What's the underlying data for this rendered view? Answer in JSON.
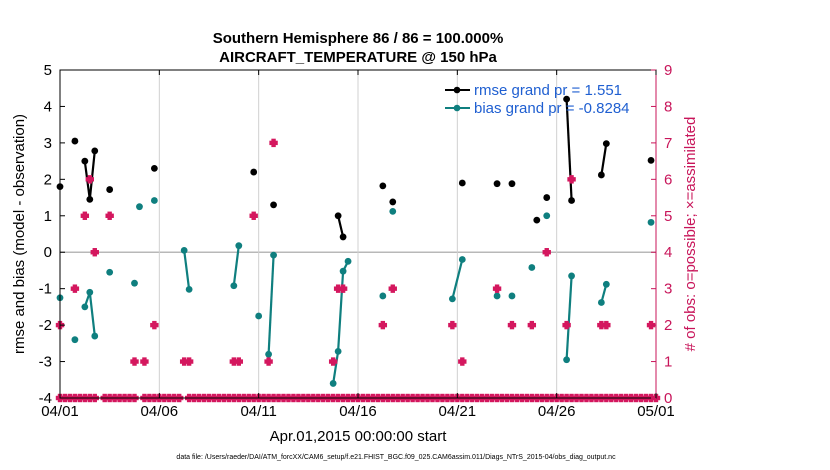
{
  "chart_data": {
    "type": "line",
    "title": "Southern Hemisphere 86 / 86 = 100.000%",
    "subtitle": "AIRCRAFT_TEMPERATURE @ 150 hPa",
    "xlabel": "Apr.01,2015 00:00:00 start",
    "ylabel": "rmse and bias (model - observation)",
    "y2label": "# of obs: o=possible; ×=assimilated",
    "xlim": [
      0,
      30
    ],
    "ylim": [
      -4,
      5
    ],
    "y2lim": [
      0,
      9
    ],
    "x_ticks": [
      0,
      5,
      10,
      15,
      20,
      25,
      30
    ],
    "x_tick_labels": [
      "04/01",
      "04/06",
      "04/11",
      "04/16",
      "04/21",
      "04/26",
      "05/01"
    ],
    "y_ticks": [
      -4,
      -3,
      -2,
      -1,
      0,
      1,
      2,
      3,
      4,
      5
    ],
    "y2_ticks": [
      0,
      1,
      2,
      3,
      4,
      5,
      6,
      7,
      8,
      9
    ],
    "legend_position": "top-right",
    "series": [
      {
        "name": "rmse grand pr = 1.551",
        "color": "#000000",
        "segments": [
          [
            [
              0.0,
              1.8
            ]
          ],
          [
            [
              0.75,
              3.05
            ]
          ],
          [
            [
              1.25,
              2.5
            ],
            [
              1.5,
              1.45
            ],
            [
              1.75,
              2.78
            ]
          ],
          [
            [
              2.5,
              1.72
            ]
          ],
          [
            [
              4.75,
              2.3
            ]
          ],
          [
            [
              9.75,
              2.2
            ]
          ],
          [
            [
              10.75,
              1.3
            ]
          ],
          [
            [
              14.0,
              1.0
            ],
            [
              14.25,
              0.42
            ]
          ],
          [
            [
              16.25,
              1.82
            ]
          ],
          [
            [
              16.75,
              1.38
            ]
          ],
          [
            [
              20.25,
              1.9
            ]
          ],
          [
            [
              22.0,
              1.88
            ]
          ],
          [
            [
              22.75,
              1.88
            ]
          ],
          [
            [
              24.0,
              0.88
            ]
          ],
          [
            [
              24.5,
              1.5
            ]
          ],
          [
            [
              25.5,
              4.2
            ],
            [
              25.75,
              1.42
            ]
          ],
          [
            [
              27.25,
              2.12
            ],
            [
              27.5,
              2.98
            ]
          ],
          [
            [
              29.75,
              2.52
            ]
          ]
        ]
      },
      {
        "name": "bias grand pr = -0.8284",
        "color": "#0f7f7f",
        "segments": [
          [
            [
              0.0,
              -1.25
            ]
          ],
          [
            [
              0.75,
              -2.4
            ]
          ],
          [
            [
              1.25,
              -1.5
            ],
            [
              1.5,
              -1.1
            ],
            [
              1.75,
              -2.3
            ]
          ],
          [
            [
              2.5,
              -0.55
            ]
          ],
          [
            [
              3.75,
              -0.85
            ]
          ],
          [
            [
              4.0,
              1.25
            ]
          ],
          [
            [
              4.75,
              1.42
            ]
          ],
          [
            [
              6.25,
              0.05
            ],
            [
              6.5,
              -1.02
            ]
          ],
          [
            [
              8.75,
              -0.92
            ],
            [
              9.0,
              0.18
            ]
          ],
          [
            [
              10.0,
              -1.75
            ]
          ],
          [
            [
              10.5,
              -2.8
            ],
            [
              10.75,
              -0.08
            ]
          ],
          [
            [
              13.75,
              -3.6
            ],
            [
              14.0,
              -2.72
            ],
            [
              14.25,
              -0.52
            ],
            [
              14.5,
              -0.25
            ]
          ],
          [
            [
              16.25,
              -1.2
            ]
          ],
          [
            [
              16.75,
              1.12
            ]
          ],
          [
            [
              19.75,
              -1.28
            ],
            [
              20.25,
              -0.2
            ]
          ],
          [
            [
              22.0,
              -1.2
            ]
          ],
          [
            [
              22.75,
              -1.2
            ]
          ],
          [
            [
              23.75,
              -0.42
            ]
          ],
          [
            [
              24.5,
              1.0
            ]
          ],
          [
            [
              25.5,
              -2.95
            ],
            [
              25.75,
              -0.65
            ]
          ],
          [
            [
              27.25,
              -1.38
            ],
            [
              27.5,
              -0.88
            ]
          ],
          [
            [
              29.75,
              0.82
            ]
          ]
        ]
      }
    ],
    "obs_possible": {
      "name": "possible",
      "color": "#d4175e",
      "marker": "o",
      "points": [
        [
          0.0,
          0
        ],
        [
          0.25,
          0
        ],
        [
          0.5,
          0
        ],
        [
          0.75,
          0
        ],
        [
          1.0,
          0
        ],
        [
          1.25,
          0
        ],
        [
          1.5,
          0
        ],
        [
          1.75,
          0
        ],
        [
          2.25,
          0
        ],
        [
          2.5,
          0
        ],
        [
          2.75,
          0
        ],
        [
          3.0,
          0
        ],
        [
          3.25,
          0
        ],
        [
          3.5,
          0
        ],
        [
          3.75,
          0
        ],
        [
          4.25,
          0
        ],
        [
          4.5,
          0
        ],
        [
          4.75,
          0
        ],
        [
          5.0,
          0
        ],
        [
          5.25,
          0
        ],
        [
          5.5,
          0
        ],
        [
          5.75,
          0
        ],
        [
          6.0,
          0
        ],
        [
          6.5,
          0
        ],
        [
          6.75,
          0
        ],
        [
          7.0,
          0
        ],
        [
          7.25,
          0
        ],
        [
          7.5,
          0
        ],
        [
          7.75,
          0
        ],
        [
          8.0,
          0
        ],
        [
          8.25,
          0
        ],
        [
          8.5,
          0
        ],
        [
          8.75,
          0
        ],
        [
          9.0,
          0
        ],
        [
          9.25,
          0
        ],
        [
          9.5,
          0
        ],
        [
          9.75,
          0
        ],
        [
          10.0,
          0
        ],
        [
          10.25,
          0
        ],
        [
          10.5,
          0
        ],
        [
          10.75,
          0
        ],
        [
          11.0,
          0
        ],
        [
          11.25,
          0
        ],
        [
          11.5,
          0
        ],
        [
          11.75,
          0
        ],
        [
          12.0,
          0
        ],
        [
          12.25,
          0
        ],
        [
          12.5,
          0
        ],
        [
          12.75,
          0
        ],
        [
          13.0,
          0
        ],
        [
          13.25,
          0
        ],
        [
          13.5,
          0
        ],
        [
          13.75,
          0
        ],
        [
          14.0,
          0
        ],
        [
          14.25,
          0
        ],
        [
          14.5,
          0
        ],
        [
          14.75,
          0
        ],
        [
          15.0,
          0
        ],
        [
          15.25,
          0
        ],
        [
          15.5,
          0
        ],
        [
          15.75,
          0
        ],
        [
          16.0,
          0
        ],
        [
          16.25,
          0
        ],
        [
          16.5,
          0
        ],
        [
          16.75,
          0
        ],
        [
          17.0,
          0
        ],
        [
          17.25,
          0
        ],
        [
          17.5,
          0
        ],
        [
          17.75,
          0
        ],
        [
          18.0,
          0
        ],
        [
          18.25,
          0
        ],
        [
          18.5,
          0
        ],
        [
          18.75,
          0
        ],
        [
          19.0,
          0
        ],
        [
          19.25,
          0
        ],
        [
          19.5,
          0
        ],
        [
          19.75,
          0
        ],
        [
          20.0,
          0
        ],
        [
          20.25,
          0
        ],
        [
          20.5,
          0
        ],
        [
          20.75,
          0
        ],
        [
          21.0,
          0
        ],
        [
          21.25,
          0
        ],
        [
          21.5,
          0
        ],
        [
          21.75,
          0
        ],
        [
          22.0,
          0
        ],
        [
          22.25,
          0
        ],
        [
          22.5,
          0
        ],
        [
          22.75,
          0
        ],
        [
          23.0,
          0
        ],
        [
          23.25,
          0
        ],
        [
          23.5,
          0
        ],
        [
          23.75,
          0
        ],
        [
          24.0,
          0
        ],
        [
          24.25,
          0
        ],
        [
          24.5,
          0
        ],
        [
          24.75,
          0
        ],
        [
          25.0,
          0
        ],
        [
          25.25,
          0
        ],
        [
          25.5,
          0
        ],
        [
          25.75,
          0
        ],
        [
          26.0,
          0
        ],
        [
          26.25,
          0
        ],
        [
          26.5,
          0
        ],
        [
          26.75,
          0
        ],
        [
          27.0,
          0
        ],
        [
          27.25,
          0
        ],
        [
          27.5,
          0
        ],
        [
          27.75,
          0
        ],
        [
          28.0,
          0
        ],
        [
          28.25,
          0
        ],
        [
          28.5,
          0
        ],
        [
          28.75,
          0
        ],
        [
          29.0,
          0
        ],
        [
          29.25,
          0
        ],
        [
          29.5,
          0
        ],
        [
          29.75,
          0
        ],
        [
          30.0,
          0
        ],
        [
          0.0,
          2
        ],
        [
          0.75,
          3
        ],
        [
          1.25,
          5
        ],
        [
          1.5,
          6
        ],
        [
          1.75,
          4
        ],
        [
          2.5,
          5
        ],
        [
          3.75,
          1
        ],
        [
          4.25,
          1
        ],
        [
          4.75,
          2
        ],
        [
          6.25,
          1
        ],
        [
          6.5,
          1
        ],
        [
          8.75,
          1
        ],
        [
          9.0,
          1
        ],
        [
          9.75,
          5
        ],
        [
          10.5,
          1
        ],
        [
          10.75,
          7
        ],
        [
          13.75,
          1
        ],
        [
          14.0,
          3
        ],
        [
          14.25,
          3
        ],
        [
          16.25,
          2
        ],
        [
          16.75,
          3
        ],
        [
          19.75,
          2
        ],
        [
          20.25,
          1
        ],
        [
          22.0,
          3
        ],
        [
          22.75,
          2
        ],
        [
          23.75,
          2
        ],
        [
          24.5,
          4
        ],
        [
          25.5,
          2
        ],
        [
          25.75,
          6
        ],
        [
          27.25,
          2
        ],
        [
          27.5,
          2
        ],
        [
          29.75,
          2
        ]
      ]
    }
  },
  "footer": "data file: /Users/raeder/DAI/ATM_forcXX/CAM6_setup/f.e21.FHIST_BGC.f09_025.CAM6assim.011/Diags_NTrS_2015-04/obs_diag_output.nc"
}
